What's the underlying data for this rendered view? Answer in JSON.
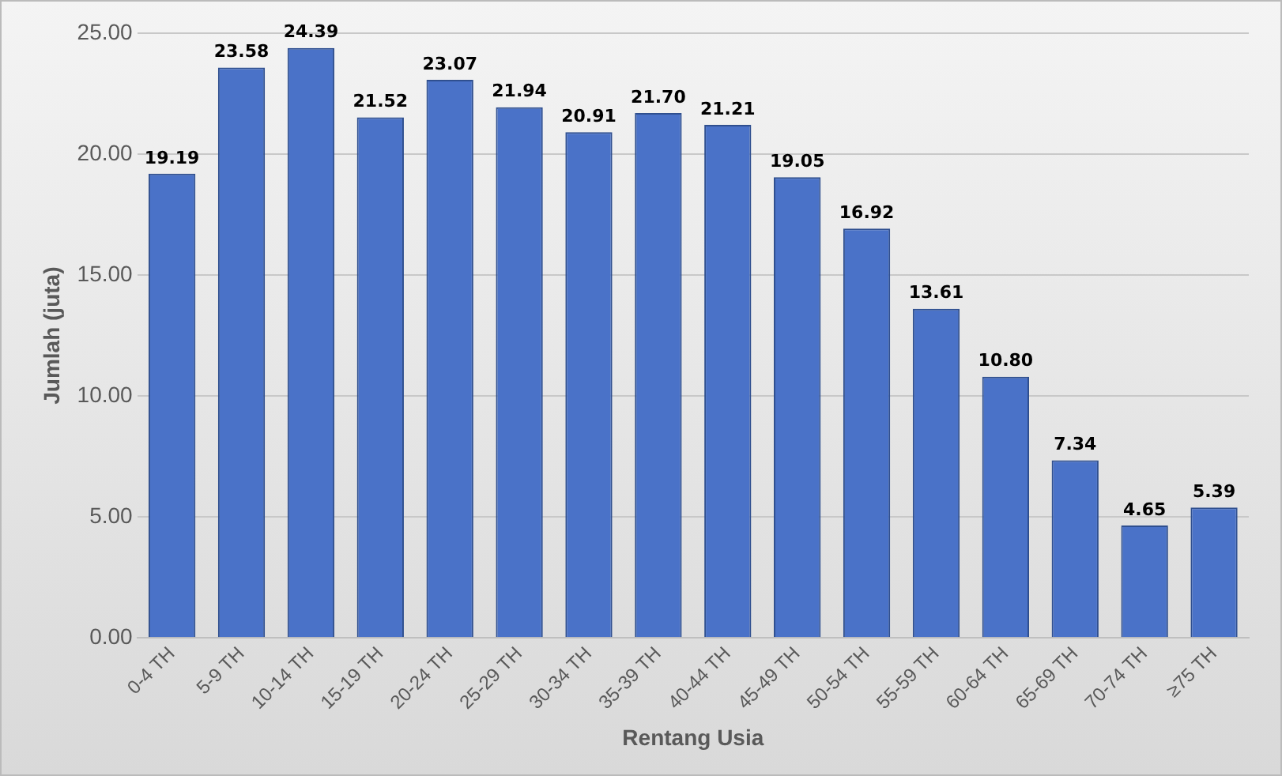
{
  "chart_data": {
    "type": "bar",
    "xlabel": "Rentang Usia",
    "ylabel": "Jumlah (juta)",
    "categories": [
      "0-4 TH",
      "5-9 TH",
      "10-14 TH",
      "15-19 TH",
      "20-24 TH",
      "25-29 TH",
      "30-34 TH",
      "35-39 TH",
      "40-44 TH",
      "45-49 TH",
      "50-54 TH",
      "55-59 TH",
      "60-64 TH",
      "65-69 TH",
      "70-74 TH",
      "≥75 TH"
    ],
    "values": [
      19.19,
      23.58,
      24.39,
      21.52,
      23.07,
      21.94,
      20.91,
      21.7,
      21.21,
      19.05,
      16.92,
      13.61,
      10.8,
      7.34,
      4.65,
      5.39
    ],
    "value_labels": [
      "19.19",
      "23.58",
      "24.39",
      "21.52",
      "23.07",
      "21.94",
      "20.91",
      "21.70",
      "21.21",
      "19.05",
      "16.92",
      "13.61",
      "10.80",
      "7.34",
      "4.65",
      "5.39"
    ],
    "color": "#4a72c8",
    "ylim": [
      0,
      25
    ],
    "yticks": [
      {
        "value": 0,
        "label": "0.00"
      },
      {
        "value": 5,
        "label": "5.00"
      },
      {
        "value": 10,
        "label": "10.00"
      },
      {
        "value": 15,
        "label": "15.00"
      },
      {
        "value": 20,
        "label": "20.00"
      },
      {
        "value": 25,
        "label": "25.00"
      }
    ],
    "grid": "y"
  }
}
